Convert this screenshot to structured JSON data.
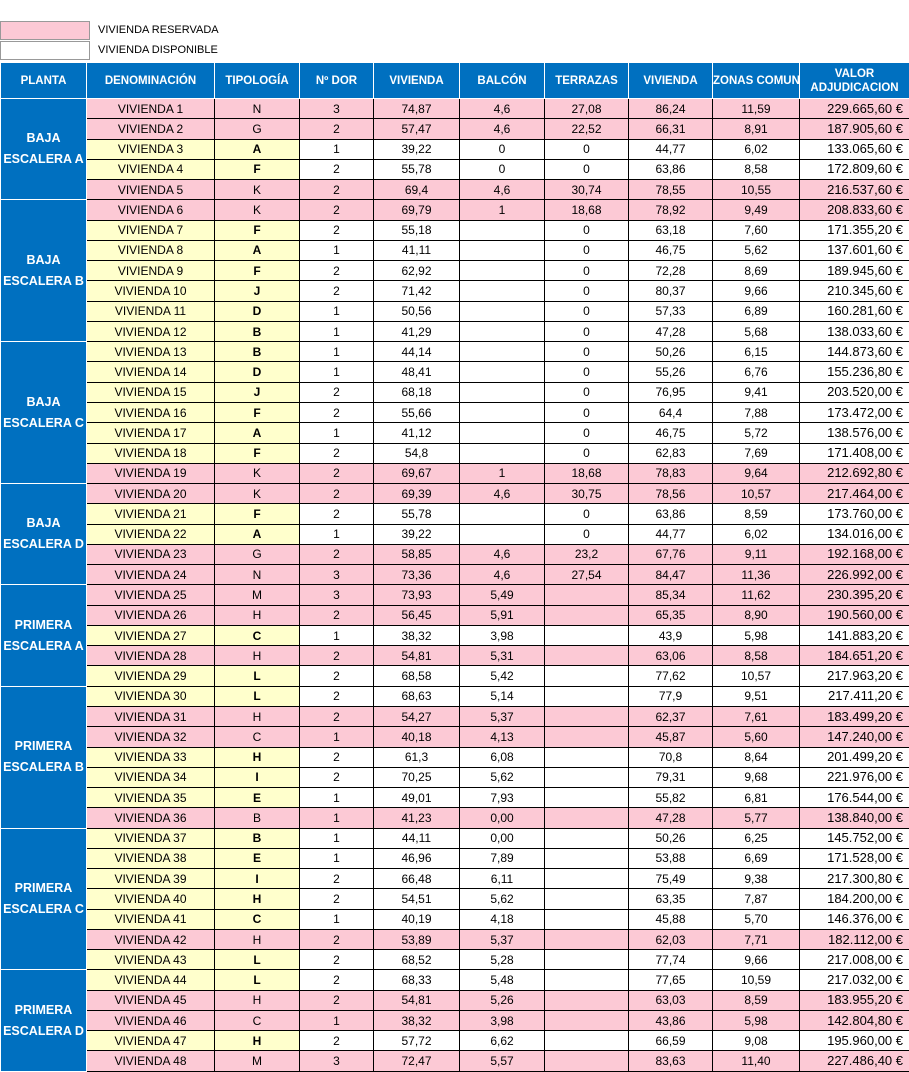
{
  "legend": [
    {
      "label": "VIVIENDA RESERVADA",
      "color": "#fcc9d5"
    },
    {
      "label": "VIVIENDA DISPONIBLE",
      "color": "#ffffff"
    }
  ],
  "header": [
    "PLANTA",
    "DENOMINACIÓN",
    "TIPOLOGÍA",
    "Nº DOR",
    "VIVIENDA",
    "BALCÓN",
    "TERRAZAS",
    "VIVIENDA",
    "ZONAS COMUNES",
    "VALOR ADJUDICACION"
  ],
  "colors": {
    "header": "#0070c0",
    "reservada": "#fcc9d5",
    "disponible": "#ffffcc"
  },
  "groups": [
    {
      "planta": "BAJA ESCALERA A",
      "rows": [
        {
          "den": "VIVIENDA 1",
          "tip": "N",
          "dor": "3",
          "viv": "74,87",
          "bal": "4,6",
          "ter": "27,08",
          "vt": "86,24",
          "zc": "11,59",
          "val": "229.665,60 €",
          "reservada": true
        },
        {
          "den": "VIVIENDA 2",
          "tip": "G",
          "dor": "2",
          "viv": "57,47",
          "bal": "4,6",
          "ter": "22,52",
          "vt": "66,31",
          "zc": "8,91",
          "val": "187.905,60 €",
          "reservada": true
        },
        {
          "den": "VIVIENDA 3",
          "tip": "A",
          "dor": "1",
          "viv": "39,22",
          "bal": "0",
          "ter": "0",
          "vt": "44,77",
          "zc": "6,02",
          "val": "133.065,60 €",
          "reservada": false
        },
        {
          "den": "VIVIENDA 4",
          "tip": "F",
          "dor": "2",
          "viv": "55,78",
          "bal": "0",
          "ter": "0",
          "vt": "63,86",
          "zc": "8,58",
          "val": "172.809,60 €",
          "reservada": false
        },
        {
          "den": "VIVIENDA 5",
          "tip": "K",
          "dor": "2",
          "viv": "69,4",
          "bal": "4,6",
          "ter": "30,74",
          "vt": "78,55",
          "zc": "10,55",
          "val": "216.537,60 €",
          "reservada": true
        }
      ]
    },
    {
      "planta": "BAJA ESCALERA B",
      "rows": [
        {
          "den": "VIVIENDA 6",
          "tip": "K",
          "dor": "2",
          "viv": "69,79",
          "bal": "1",
          "ter": "18,68",
          "vt": "78,92",
          "zc": "9,49",
          "val": "208.833,60 €",
          "reservada": true
        },
        {
          "den": "VIVIENDA 7",
          "tip": "F",
          "dor": "2",
          "viv": "55,18",
          "ter": "0",
          "vt": "63,18",
          "zc": "7,60",
          "val": "171.355,20 €",
          "reservada": false
        },
        {
          "den": "VIVIENDA 8",
          "tip": "A",
          "dor": "1",
          "viv": "41,11",
          "ter": "0",
          "vt": "46,75",
          "zc": "5,62",
          "val": "137.601,60 €",
          "reservada": false
        },
        {
          "den": "VIVIENDA 9",
          "tip": "F",
          "dor": "2",
          "viv": "62,92",
          "ter": "0",
          "vt": "72,28",
          "zc": "8,69",
          "val": "189.945,60 €",
          "reservada": false
        },
        {
          "den": "VIVIENDA 10",
          "tip": "J",
          "dor": "2",
          "viv": "71,42",
          "ter": "0",
          "vt": "80,37",
          "zc": "9,66",
          "val": "210.345,60 €",
          "reservada": false
        },
        {
          "den": "VIVIENDA 11",
          "tip": "D",
          "dor": "1",
          "viv": "50,56",
          "ter": "0",
          "vt": "57,33",
          "zc": "6,89",
          "val": "160.281,60 €",
          "reservada": false
        },
        {
          "den": "VIVIENDA 12",
          "tip": "B",
          "dor": "1",
          "viv": "41,29",
          "ter": "0",
          "vt": "47,28",
          "zc": "5,68",
          "val": "138.033,60 €",
          "reservada": false
        }
      ]
    },
    {
      "planta": "BAJA ESCALERA C",
      "rows": [
        {
          "den": "VIVIENDA 13",
          "tip": "B",
          "dor": "1",
          "viv": "44,14",
          "ter": "0",
          "vt": "50,26",
          "zc": "6,15",
          "val": "144.873,60 €",
          "reservada": false
        },
        {
          "den": "VIVIENDA 14",
          "tip": "D",
          "dor": "1",
          "viv": "48,41",
          "ter": "0",
          "vt": "55,26",
          "zc": "6,76",
          "val": "155.236,80 €",
          "reservada": false
        },
        {
          "den": "VIVIENDA 15",
          "tip": "J",
          "dor": "2",
          "viv": "68,18",
          "ter": "0",
          "vt": "76,95",
          "zc": "9,41",
          "val": "203.520,00 €",
          "reservada": false
        },
        {
          "den": "VIVIENDA 16",
          "tip": "F",
          "dor": "2",
          "viv": "55,66",
          "ter": "0",
          "vt": "64,4",
          "zc": "7,88",
          "val": "173.472,00 €",
          "reservada": false
        },
        {
          "den": "VIVIENDA 17",
          "tip": "A",
          "dor": "1",
          "viv": "41,12",
          "ter": "0",
          "vt": "46,75",
          "zc": "5,72",
          "val": "138.576,00 €",
          "reservada": false
        },
        {
          "den": "VIVIENDA 18",
          "tip": "F",
          "dor": "2",
          "viv": "54,8",
          "ter": "0",
          "vt": "62,83",
          "zc": "7,69",
          "val": "171.408,00 €",
          "reservada": false
        },
        {
          "den": "VIVIENDA 19",
          "tip": "K",
          "dor": "2",
          "viv": "69,67",
          "bal": "1",
          "ter": "18,68",
          "vt": "78,83",
          "zc": "9,64",
          "val": "212.692,80 €",
          "reservada": true
        }
      ]
    },
    {
      "planta": "BAJA ESCALERA D",
      "rows": [
        {
          "den": "VIVIENDA 20",
          "tip": "K",
          "dor": "2",
          "viv": "69,39",
          "bal": "4,6",
          "ter": "30,75",
          "vt": "78,56",
          "zc": "10,57",
          "val": "217.464,00 €",
          "reservada": true
        },
        {
          "den": "VIVIENDA 21",
          "tip": "F",
          "dor": "2",
          "viv": "55,78",
          "ter": "0",
          "vt": "63,86",
          "zc": "8,59",
          "val": "173.760,00 €",
          "reservada": false
        },
        {
          "den": "VIVIENDA 22",
          "tip": "A",
          "dor": "1",
          "viv": "39,22",
          "ter": "0",
          "vt": "44,77",
          "zc": "6,02",
          "val": "134.016,00 €",
          "reservada": false
        },
        {
          "den": "VIVIENDA 23",
          "tip": "G",
          "dor": "2",
          "viv": "58,85",
          "bal": "4,6",
          "ter": "23,2",
          "vt": "67,76",
          "zc": "9,11",
          "val": "192.168,00 €",
          "reservada": true
        },
        {
          "den": "VIVIENDA 24",
          "tip": "N",
          "dor": "3",
          "viv": "73,36",
          "bal": "4,6",
          "ter": "27,54",
          "vt": "84,47",
          "zc": "11,36",
          "val": "226.992,00 €",
          "reservada": true
        }
      ]
    },
    {
      "planta": "PRIMERA ESCALERA A",
      "rows": [
        {
          "den": "VIVIENDA 25",
          "tip": "M",
          "dor": "3",
          "viv": "73,93",
          "bal": "5,49",
          "vt": "85,34",
          "zc": "11,62",
          "val": "230.395,20 €",
          "reservada": true
        },
        {
          "den": "VIVIENDA 26",
          "tip": "H",
          "dor": "2",
          "viv": "56,45",
          "bal": "5,91",
          "vt": "65,35",
          "zc": "8,90",
          "val": "190.560,00 €",
          "reservada": true
        },
        {
          "den": "VIVIENDA 27",
          "tip": "C",
          "dor": "1",
          "viv": "38,32",
          "bal": "3,98",
          "vt": "43,9",
          "zc": "5,98",
          "val": "141.883,20 €",
          "reservada": false
        },
        {
          "den": "VIVIENDA 28",
          "tip": "H",
          "dor": "2",
          "viv": "54,81",
          "bal": "5,31",
          "vt": "63,06",
          "zc": "8,58",
          "val": "184.651,20 €",
          "reservada": true
        },
        {
          "den": "VIVIENDA 29",
          "tip": "L",
          "dor": "2",
          "viv": "68,58",
          "bal": "5,42",
          "vt": "77,62",
          "zc": "10,57",
          "val": "217.963,20 €",
          "reservada": false
        }
      ]
    },
    {
      "planta": "PRIMERA ESCALERA B",
      "rows": [
        {
          "den": "VIVIENDA 30",
          "tip": "L",
          "dor": "2",
          "viv": "68,63",
          "bal": "5,14",
          "vt": "77,9",
          "zc": "9,51",
          "val": "217.411,20 €",
          "reservada": false
        },
        {
          "den": "VIVIENDA 31",
          "tip": "H",
          "dor": "2",
          "viv": "54,27",
          "bal": "5,37",
          "vt": "62,37",
          "zc": "7,61",
          "val": "183.499,20 €",
          "reservada": true
        },
        {
          "den": "VIVIENDA 32",
          "tip": "C",
          "dor": "1",
          "viv": "40,18",
          "bal": "4,13",
          "vt": "45,87",
          "zc": "5,60",
          "val": "147.240,00 €",
          "reservada": true
        },
        {
          "den": "VIVIENDA 33",
          "tip": "H",
          "dor": "2",
          "viv": "61,3",
          "bal": "6,08",
          "vt": "70,8",
          "zc": "8,64",
          "val": "201.499,20 €",
          "reservada": false
        },
        {
          "den": "VIVIENDA 34",
          "tip": "I",
          "dor": "2",
          "viv": "70,25",
          "bal": "5,62",
          "vt": "79,31",
          "zc": "9,68",
          "val": "221.976,00 €",
          "reservada": false
        },
        {
          "den": "VIVIENDA 35",
          "tip": "E",
          "dor": "1",
          "viv": "49,01",
          "bal": "7,93",
          "vt": "55,82",
          "zc": "6,81",
          "val": "176.544,00 €",
          "reservada": false
        },
        {
          "den": "VIVIENDA 36",
          "tip": "B",
          "dor": "1",
          "viv": "41,23",
          "bal": "0,00",
          "vt": "47,28",
          "zc": "5,77",
          "val": "138.840,00 €",
          "reservada": true
        }
      ]
    },
    {
      "planta": "PRIMERA ESCALERA C",
      "rows": [
        {
          "den": "VIVIENDA 37",
          "tip": "B",
          "dor": "1",
          "viv": "44,11",
          "bal": "0,00",
          "vt": "50,26",
          "zc": "6,25",
          "val": "145.752,00 €",
          "reservada": false
        },
        {
          "den": "VIVIENDA 38",
          "tip": "E",
          "dor": "1",
          "viv": "46,96",
          "bal": "7,89",
          "vt": "53,88",
          "zc": "6,69",
          "val": "171.528,00 €",
          "reservada": false
        },
        {
          "den": "VIVIENDA 39",
          "tip": "I",
          "dor": "2",
          "viv": "66,48",
          "bal": "6,11",
          "vt": "75,49",
          "zc": "9,38",
          "val": "217.300,80 €",
          "reservada": false
        },
        {
          "den": "VIVIENDA 40",
          "tip": "H",
          "dor": "2",
          "viv": "54,51",
          "bal": "5,62",
          "vt": "63,35",
          "zc": "7,87",
          "val": "184.200,00 €",
          "reservada": false
        },
        {
          "den": "VIVIENDA 41",
          "tip": "C",
          "dor": "1",
          "viv": "40,19",
          "bal": "4,18",
          "vt": "45,88",
          "zc": "5,70",
          "val": "146.376,00 €",
          "reservada": false
        },
        {
          "den": "VIVIENDA 42",
          "tip": "H",
          "dor": "2",
          "viv": "53,89",
          "bal": "5,37",
          "vt": "62,03",
          "zc": "7,71",
          "val": "182.112,00 €",
          "reservada": true
        },
        {
          "den": "VIVIENDA 43",
          "tip": "L",
          "dor": "2",
          "viv": "68,52",
          "bal": "5,28",
          "vt": "77,74",
          "zc": "9,66",
          "val": "217.008,00 €",
          "reservada": false
        }
      ]
    },
    {
      "planta": "PRIMERA ESCALERA D",
      "rows": [
        {
          "den": "VIVIENDA 44",
          "tip": "L",
          "dor": "2",
          "viv": "68,33",
          "bal": "5,48",
          "vt": "77,65",
          "zc": "10,59",
          "val": "217.032,00 €",
          "reservada": false
        },
        {
          "den": "VIVIENDA 45",
          "tip": "H",
          "dor": "2",
          "viv": "54,81",
          "bal": "5,26",
          "vt": "63,03",
          "zc": "8,59",
          "val": "183.955,20 €",
          "reservada": true
        },
        {
          "den": "VIVIENDA 46",
          "tip": "C",
          "dor": "1",
          "viv": "38,32",
          "bal": "3,98",
          "vt": "43,86",
          "zc": "5,98",
          "val": "142.804,80 €",
          "reservada": true
        },
        {
          "den": "VIVIENDA 47",
          "tip": "H",
          "dor": "2",
          "viv": "57,72",
          "bal": "6,62",
          "vt": "66,59",
          "zc": "9,08",
          "val": "195.960,00 €",
          "reservada": false
        },
        {
          "den": "VIVIENDA 48",
          "tip": "M",
          "dor": "3",
          "viv": "72,47",
          "bal": "5,57",
          "vt": "83,63",
          "zc": "11,40",
          "val": "227.486,40 €",
          "reservada": true
        }
      ]
    }
  ]
}
